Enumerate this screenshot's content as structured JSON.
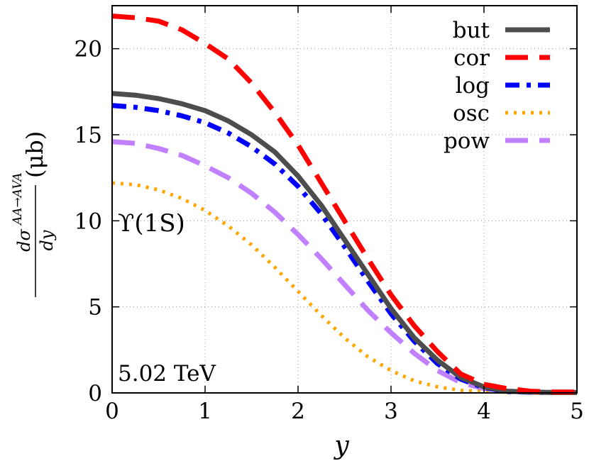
{
  "chart_data": {
    "type": "line",
    "xlim": [
      0,
      5
    ],
    "ylim": [
      0,
      22.5
    ],
    "x_ticks": [
      0,
      1,
      2,
      3,
      4,
      5
    ],
    "y_ticks": [
      0,
      5,
      10,
      15,
      20
    ],
    "x_tick_labels": [
      "0",
      "1",
      "2",
      "3",
      "4",
      "5"
    ],
    "y_tick_labels": [
      "0",
      "5",
      "10",
      "15",
      "20"
    ],
    "xlabel": "y",
    "ylabel": {
      "numerator": "dσ",
      "superscript": "AA→AVA",
      "denominator": "dy",
      "unit": "(μb)"
    },
    "grid": true,
    "legend_position": "top-right",
    "annotations": {
      "state": "ϒ(1S)",
      "energy": "5.02 TeV"
    },
    "x": [
      0,
      0.25,
      0.5,
      0.75,
      1.0,
      1.25,
      1.5,
      1.75,
      2.0,
      2.25,
      2.5,
      2.75,
      3.0,
      3.25,
      3.5,
      3.75,
      4.0,
      4.25,
      4.5,
      4.75,
      5.0
    ],
    "series": [
      {
        "name": "but",
        "color": "#4d4d4d",
        "style": "solid",
        "values": [
          17.4,
          17.3,
          17.1,
          16.8,
          16.4,
          15.8,
          15.0,
          14.0,
          12.6,
          10.9,
          8.9,
          6.9,
          4.9,
          3.2,
          1.9,
          0.9,
          0.35,
          0.1,
          0.05,
          0.02,
          0.02
        ]
      },
      {
        "name": "cor",
        "color": "#ff0000",
        "style": "dashed",
        "values": [
          21.9,
          21.8,
          21.6,
          21.1,
          20.3,
          19.4,
          18.0,
          16.3,
          14.4,
          12.2,
          10.0,
          7.8,
          5.7,
          3.9,
          2.4,
          1.1,
          0.5,
          0.25,
          0.1,
          0.05,
          0.05
        ]
      },
      {
        "name": "log",
        "color": "#0000ff",
        "style": "dashdot",
        "values": [
          16.7,
          16.6,
          16.4,
          16.1,
          15.7,
          15.1,
          14.3,
          13.3,
          12.0,
          10.4,
          8.5,
          6.5,
          4.6,
          3.0,
          1.7,
          0.8,
          0.3,
          0.08,
          0.04,
          0.02,
          0.02
        ]
      },
      {
        "name": "osc",
        "color": "#ffa500",
        "style": "dotted",
        "values": [
          12.2,
          12.1,
          11.8,
          11.3,
          10.6,
          9.7,
          8.6,
          7.3,
          5.9,
          4.5,
          3.2,
          2.1,
          1.3,
          0.7,
          0.35,
          0.15,
          0.08,
          0.04,
          0.03,
          0.02,
          0.02
        ]
      },
      {
        "name": "pow",
        "color": "#c080ff",
        "style": "dashed",
        "values": [
          14.6,
          14.5,
          14.2,
          13.8,
          13.2,
          12.5,
          11.6,
          10.5,
          9.2,
          7.8,
          6.3,
          4.8,
          3.5,
          2.3,
          1.3,
          0.6,
          0.25,
          0.1,
          0.05,
          0.03,
          0.03
        ]
      }
    ]
  }
}
